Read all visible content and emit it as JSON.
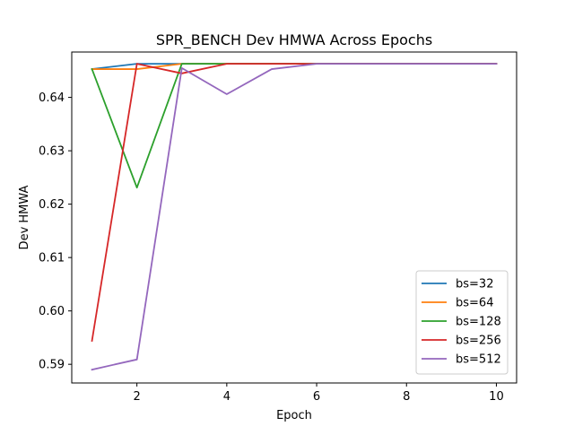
{
  "chart_data": {
    "type": "line",
    "title": "SPR_BENCH Dev HMWA Across Epochs",
    "xlabel": "Epoch",
    "ylabel": "Dev HMWA",
    "xlim": [
      0.55,
      10.45
    ],
    "ylim": [
      0.5865,
      0.6485
    ],
    "xticks": [
      2,
      4,
      6,
      8,
      10
    ],
    "yticks": [
      0.59,
      0.6,
      0.61,
      0.62,
      0.63,
      0.64
    ],
    "xtick_labels": [
      "2",
      "4",
      "6",
      "8",
      "10"
    ],
    "ytick_labels": [
      "0.59",
      "0.60",
      "0.61",
      "0.62",
      "0.63",
      "0.64"
    ],
    "grid": false,
    "legend_position": "lower right",
    "x": [
      1,
      2,
      3,
      4,
      5,
      6,
      7,
      8,
      9,
      10
    ],
    "series": [
      {
        "name": "bs=32",
        "color": "#1f77b4",
        "values": [
          0.6453,
          0.6463,
          0.6463,
          0.6463,
          0.6463,
          0.6463,
          0.6463,
          0.6463,
          0.6463,
          0.6463
        ]
      },
      {
        "name": "bs=64",
        "color": "#ff7f0e",
        "values": [
          0.6453,
          0.6453,
          0.6463,
          0.6463,
          0.6463,
          0.6463,
          0.6463,
          0.6463,
          0.6463,
          0.6463
        ]
      },
      {
        "name": "bs=128",
        "color": "#2ca02c",
        "values": [
          0.6453,
          0.6231,
          0.6463,
          0.6463,
          0.6463,
          0.6463,
          0.6463,
          0.6463,
          0.6463,
          0.6463
        ]
      },
      {
        "name": "bs=256",
        "color": "#d62728",
        "values": [
          0.5944,
          0.6463,
          0.6445,
          0.6463,
          0.6463,
          0.6463,
          0.6463,
          0.6463,
          0.6463,
          0.6463
        ]
      },
      {
        "name": "bs=512",
        "color": "#9467bd",
        "values": [
          0.589,
          0.5909,
          0.6455,
          0.6406,
          0.6453,
          0.6463,
          0.6463,
          0.6463,
          0.6463,
          0.6463
        ]
      }
    ]
  }
}
